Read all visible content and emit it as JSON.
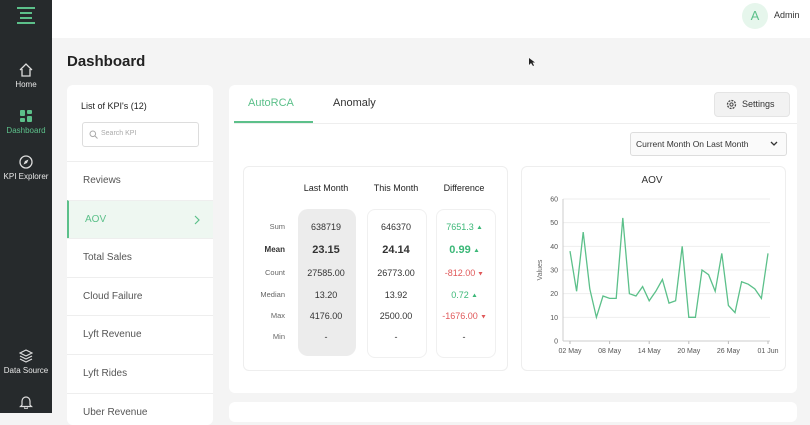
{
  "sidebar": {
    "items": [
      {
        "label": "Home"
      },
      {
        "label": "Dashboard"
      },
      {
        "label": "KPI Explorer"
      },
      {
        "label": "Data Source"
      }
    ]
  },
  "header": {
    "avatar": "A",
    "user": "Admin"
  },
  "page_title": "Dashboard",
  "kpi_list": {
    "title": "List of KPI's (12)",
    "search_placeholder": "Search KPI",
    "items": [
      "Reviews",
      "AOV",
      "Total Sales",
      "Cloud Failure",
      "Lyft Revenue",
      "Lyft Rides",
      "Uber Revenue"
    ]
  },
  "tabs": [
    "AutoRCA",
    "Anomaly"
  ],
  "settings": "Settings",
  "period": "Current Month On Last Month",
  "stats": {
    "columns": [
      "Last Month",
      "This Month",
      "Difference"
    ],
    "rows": [
      {
        "label": "Sum",
        "last": "638719",
        "this": "646370",
        "diff": "7651.3",
        "trend": "up"
      },
      {
        "label": "Mean",
        "last": "23.15",
        "this": "24.14",
        "diff": "0.99",
        "trend": "up"
      },
      {
        "label": "Count",
        "last": "27585.00",
        "this": "26773.00",
        "diff": "-812.00",
        "trend": "down"
      },
      {
        "label": "Median",
        "last": "13.20",
        "this": "13.92",
        "diff": "0.72",
        "trend": "up"
      },
      {
        "label": "Max",
        "last": "4176.00",
        "this": "2500.00",
        "diff": "-1676.00",
        "trend": "down"
      },
      {
        "label": "Min",
        "last": "-",
        "this": "-",
        "diff": "-",
        "trend": "none"
      }
    ]
  },
  "chart_data": {
    "type": "line",
    "title": "AOV",
    "ylabel": "Values",
    "color": "#5cc08a",
    "grid": true,
    "categories": [
      "02 May",
      null,
      null,
      null,
      null,
      null,
      "08 May",
      null,
      null,
      null,
      null,
      null,
      "14 May",
      null,
      null,
      null,
      null,
      null,
      "20 May",
      null,
      null,
      null,
      null,
      null,
      "26 May",
      null,
      null,
      null,
      null,
      null,
      "01 Jun"
    ],
    "values": [
      38,
      21,
      46,
      22,
      10,
      19,
      18,
      18,
      52,
      20,
      19,
      23,
      17,
      21,
      26,
      16,
      17,
      40,
      10,
      10,
      30,
      28,
      21,
      37,
      15,
      12,
      25,
      24,
      22,
      18,
      37
    ],
    "ylim": [
      0,
      60
    ],
    "yticks": [
      0,
      10,
      20,
      30,
      40,
      50,
      60
    ]
  }
}
